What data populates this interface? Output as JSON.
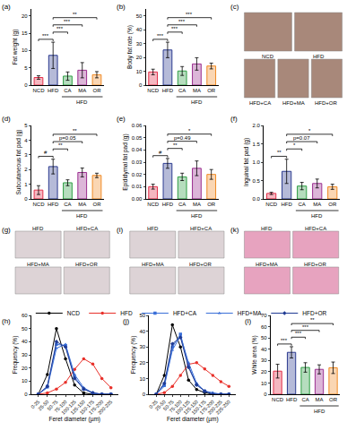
{
  "chart_data": [
    {
      "type": "bar",
      "panel": "(a)",
      "y_label": "Fat weight (g)",
      "categories": [
        "NCD",
        "HFD",
        "CA",
        "MA",
        "OR"
      ],
      "group": {
        "label": "HFD",
        "categories": [
          "CA",
          "MA",
          "OR"
        ]
      },
      "values": [
        2.2,
        8.6,
        2.6,
        4.3,
        3.0
      ],
      "errors": [
        0.5,
        3.8,
        1.2,
        2.2,
        0.9
      ],
      "colors": [
        "#e2304a",
        "#2b3a8f",
        "#2e9e44",
        "#9b2f8f",
        "#f08a24"
      ],
      "ylim": [
        0,
        22
      ],
      "yticks": [
        0,
        5,
        10,
        15,
        20
      ],
      "comparisons": [
        {
          "pair": [
            "NCD",
            "HFD"
          ],
          "label": "***"
        },
        {
          "pair": [
            "HFD",
            "CA"
          ],
          "label": "***"
        },
        {
          "pair": [
            "HFD",
            "MA"
          ],
          "label": "***"
        },
        {
          "pair": [
            "HFD",
            "OR"
          ],
          "label": "**"
        }
      ]
    },
    {
      "type": "bar",
      "panel": "(b)",
      "y_label": "Body fat rate (%)",
      "categories": [
        "NCD",
        "HFD",
        "CA",
        "MA",
        "OR"
      ],
      "group": {
        "label": "HFD",
        "categories": [
          "CA",
          "MA",
          "OR"
        ]
      },
      "values": [
        9.5,
        25.4,
        10.2,
        15.3,
        13.8
      ],
      "errors": [
        2.0,
        5.6,
        3.2,
        4.5,
        2.1
      ],
      "colors": [
        "#e2304a",
        "#2b3a8f",
        "#2e9e44",
        "#9b2f8f",
        "#f08a24"
      ],
      "ylim": [
        0,
        55
      ],
      "yticks": [
        0,
        10,
        20,
        30,
        40,
        50
      ],
      "comparisons": [
        {
          "pair": [
            "NCD",
            "HFD"
          ],
          "label": "***"
        },
        {
          "pair": [
            "HFD",
            "CA"
          ],
          "label": "***"
        },
        {
          "pair": [
            "HFD",
            "MA"
          ],
          "label": "***"
        },
        {
          "pair": [
            "HFD",
            "OR"
          ],
          "label": "***"
        }
      ]
    },
    {
      "type": "bar",
      "panel": "(d)",
      "y_label": "Subcutaneous fat pad (g)",
      "categories": [
        "NCD",
        "HFD",
        "CA",
        "MA",
        "OR"
      ],
      "group": {
        "label": "HFD",
        "categories": [
          "CA",
          "MA",
          "OR"
        ]
      },
      "values": [
        0.6,
        2.2,
        1.1,
        1.8,
        1.6
      ],
      "errors": [
        0.3,
        0.5,
        0.2,
        0.3,
        0.15
      ],
      "colors": [
        "#e2304a",
        "#2b3a8f",
        "#2e9e44",
        "#9b2f8f",
        "#f08a24"
      ],
      "ylim": [
        0,
        5
      ],
      "yticks": [
        0,
        1,
        2,
        3,
        4,
        5
      ],
      "comparisons": [
        {
          "pair": [
            "NCD",
            "HFD"
          ],
          "label": "#"
        },
        {
          "pair": [
            "HFD",
            "CA"
          ],
          "label": "**"
        },
        {
          "pair": [
            "HFD",
            "MA"
          ],
          "label": "p=0.05"
        },
        {
          "pair": [
            "HFD",
            "OR"
          ],
          "label": "**"
        }
      ]
    },
    {
      "type": "bar",
      "panel": "(e)",
      "y_label": "Epididymal fat pad (g)",
      "categories": [
        "NCD",
        "HFD",
        "CA",
        "MA",
        "OR"
      ],
      "group": {
        "label": "HFD",
        "categories": [
          "CA",
          "MA",
          "OR"
        ]
      },
      "values": [
        0.01,
        0.029,
        0.018,
        0.025,
        0.02
      ],
      "errors": [
        0.002,
        0.004,
        0.003,
        0.006,
        0.004
      ],
      "colors": [
        "#e2304a",
        "#2b3a8f",
        "#2e9e44",
        "#9b2f8f",
        "#f08a24"
      ],
      "ylim": [
        0,
        0.06
      ],
      "yticks": [
        {
          "value": 0,
          "label": "0.00"
        },
        {
          "value": 0.01,
          "label": "0.01"
        },
        {
          "value": 0.02,
          "label": "0.02"
        },
        {
          "value": 0.03,
          "label": "0.03"
        },
        {
          "value": 0.04,
          "label": "0.04"
        },
        {
          "value": 0.05,
          "label": "0.05"
        },
        {
          "value": 0.06,
          "label": "0.06"
        }
      ],
      "comparisons": [
        {
          "pair": [
            "NCD",
            "HFD"
          ],
          "label": "#"
        },
        {
          "pair": [
            "HFD",
            "CA"
          ],
          "label": "**"
        },
        {
          "pair": [
            "HFD",
            "MA"
          ],
          "label": "p=0.49"
        },
        {
          "pair": [
            "HFD",
            "OR"
          ],
          "label": "*"
        }
      ]
    },
    {
      "type": "bar",
      "panel": "(f)",
      "y_label": "Inguinal fat pad (g)",
      "categories": [
        "NCD",
        "HFD",
        "CA",
        "MA",
        "OR"
      ],
      "group": {
        "label": "HFD",
        "categories": [
          "CA",
          "MA",
          "OR"
        ]
      },
      "values": [
        0.15,
        0.75,
        0.35,
        0.42,
        0.33
      ],
      "errors": [
        0.03,
        0.33,
        0.1,
        0.12,
        0.07
      ],
      "colors": [
        "#e2304a",
        "#2b3a8f",
        "#2e9e44",
        "#9b2f8f",
        "#f08a24"
      ],
      "ylim": [
        0,
        2.0
      ],
      "yticks": [
        {
          "value": 0,
          "label": "0.0"
        },
        0.5,
        {
          "value": 1,
          "label": "1.0"
        },
        1.5,
        {
          "value": 2,
          "label": "2.0"
        }
      ],
      "comparisons": [
        {
          "pair": [
            "NCD",
            "HFD"
          ],
          "label": "**"
        },
        {
          "pair": [
            "HFD",
            "CA"
          ],
          "label": "*"
        },
        {
          "pair": [
            "HFD",
            "MA"
          ],
          "label": "p=0.07"
        },
        {
          "pair": [
            "HFD",
            "OR"
          ],
          "label": "*"
        }
      ]
    },
    {
      "type": "line",
      "panel": "(h)",
      "x_label": "Feret diameter (µm)",
      "y_label": "Frequency (%)",
      "categories": [
        "0-25",
        "25-50",
        "50-75",
        "75-100",
        "100-125",
        "125-150",
        "150-175",
        "175-200",
        "200-225"
      ],
      "series": [
        {
          "name": "NCD",
          "color": "#000000",
          "marker": "circle",
          "values": [
            0,
            15,
            50,
            27,
            7,
            1,
            0,
            0,
            0
          ]
        },
        {
          "name": "HFD",
          "color": "#e8302a",
          "marker": "circle",
          "values": [
            0,
            1,
            4,
            9,
            19,
            27,
            23,
            12,
            5
          ]
        },
        {
          "name": "HFD+CA",
          "color": "#3a6fd8",
          "marker": "square",
          "values": [
            0,
            6,
            38,
            37,
            13,
            4,
            1,
            0,
            0
          ]
        },
        {
          "name": "HFD+MA",
          "color": "#3a6fd8",
          "marker": "triangle-up",
          "values": [
            0,
            5,
            35,
            38,
            15,
            5,
            1,
            0,
            0
          ]
        },
        {
          "name": "HFD+OR",
          "color": "#1f3a93",
          "marker": "diamond",
          "values": [
            0,
            6,
            40,
            36,
            12,
            4,
            1,
            0,
            0
          ]
        }
      ],
      "ylim": [
        0,
        60
      ],
      "yticks": [
        0,
        10,
        20,
        30,
        40,
        50,
        60
      ],
      "legend": "top"
    },
    {
      "type": "line",
      "panel": "(j)",
      "x_label": "Feret diameter (µm)",
      "y_label": "Frequency (%)",
      "categories": [
        "0-25",
        "25-50",
        "50-75",
        "75-100",
        "100-125",
        "125-150",
        "150-175",
        "175-200",
        "200-225",
        "225-250"
      ],
      "series": [
        {
          "name": "NCD",
          "color": "#000000",
          "marker": "circle",
          "values": [
            0,
            12,
            44,
            30,
            9,
            3,
            1,
            0,
            0,
            0
          ]
        },
        {
          "name": "HFD",
          "color": "#e8302a",
          "marker": "circle",
          "values": [
            0,
            1,
            5,
            12,
            19,
            20,
            16,
            12,
            8,
            5
          ]
        },
        {
          "name": "HFD+CA",
          "color": "#3a6fd8",
          "marker": "square",
          "values": [
            0,
            6,
            30,
            38,
            18,
            6,
            2,
            0,
            0,
            0
          ]
        },
        {
          "name": "HFD+MA",
          "color": "#3a6fd8",
          "marker": "triangle-up",
          "values": [
            0,
            5,
            28,
            37,
            20,
            7,
            2,
            1,
            0,
            0
          ]
        },
        {
          "name": "HFD+OR",
          "color": "#1f3a93",
          "marker": "diamond",
          "values": [
            0,
            7,
            32,
            36,
            17,
            6,
            2,
            0,
            0,
            0
          ]
        }
      ],
      "ylim": [
        0,
        50
      ],
      "yticks": [
        0,
        10,
        20,
        30,
        40,
        50
      ]
    },
    {
      "type": "bar",
      "panel": "(l)",
      "y_label": "White area (%)",
      "categories": [
        "NCD",
        "HFD",
        "CA",
        "MA",
        "OR"
      ],
      "group": {
        "label": "HFD",
        "categories": [
          "CA",
          "MA",
          "OR"
        ]
      },
      "values": [
        20.5,
        37.2,
        23.8,
        22.1,
        23.5
      ],
      "errors": [
        6.1,
        5.0,
        4.2,
        4.0,
        5.1
      ],
      "colors": [
        "#e2304a",
        "#2b3a8f",
        "#2e9e44",
        "#9b2f8f",
        "#f08a24"
      ],
      "ylim": [
        0,
        70
      ],
      "yticks": [
        0,
        10,
        20,
        30,
        40,
        50,
        60,
        70
      ],
      "comparisons": [
        {
          "pair": [
            "NCD",
            "HFD"
          ],
          "label": "***"
        },
        {
          "pair": [
            "HFD",
            "CA"
          ],
          "label": "***"
        },
        {
          "pair": [
            "HFD",
            "MA"
          ],
          "label": "***"
        },
        {
          "pair": [
            "HFD",
            "OR"
          ],
          "label": "**"
        }
      ]
    }
  ],
  "images": [
    {
      "panel": "(c)",
      "color": "#a8887a",
      "labels": [
        [
          "NCD",
          "HFD"
        ],
        [
          "HFD+CA",
          "HFD+MA",
          "HFD+OR"
        ]
      ]
    },
    {
      "panel": "(g)",
      "color": "#ddd3d6",
      "labels": [
        [
          "HFD",
          "HFD+CA"
        ],
        [
          "HFD+MA",
          "HFD+OR"
        ]
      ]
    },
    {
      "panel": "(i)",
      "color": "#ddd3d6",
      "labels": [
        [
          "HFD",
          "HFD+CA"
        ],
        [
          "HFD+MA",
          "HFD+OR"
        ]
      ]
    },
    {
      "panel": "(k)",
      "color": "#e7a3bf",
      "labels": [
        [
          "HFD",
          "HFD+CA"
        ],
        [
          "HFD+MA",
          "HFD+OR"
        ]
      ]
    }
  ]
}
